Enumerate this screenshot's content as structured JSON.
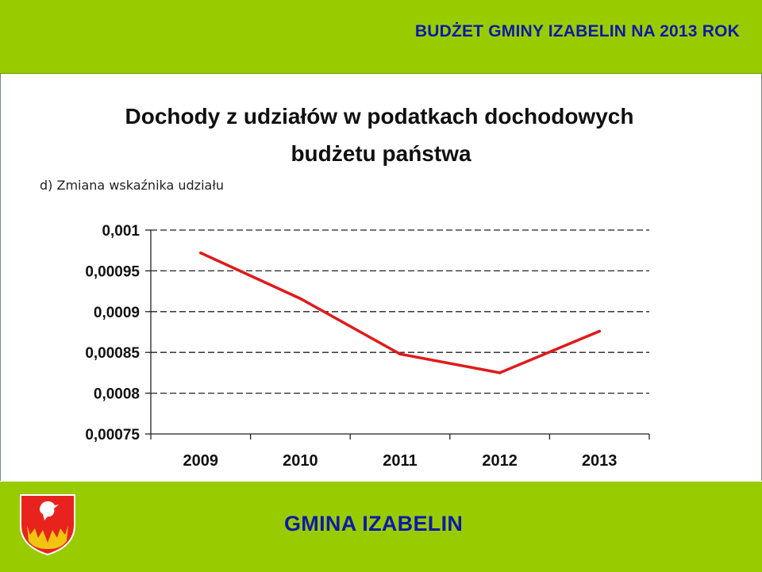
{
  "header": {
    "title": "BUDŻET GMINY IZABELIN NA 2013 ROK"
  },
  "slide": {
    "title_line1": "Dochody z udziałów w podatkach dochodowych",
    "title_line2": "budżetu państwa",
    "subtitle": "d) Zmiana wskaźnika udziału"
  },
  "footer": {
    "title": "GMINA IZABELIN"
  },
  "colors": {
    "band": "#99cc00",
    "header_text": "#0d1aa8",
    "line": "#e01a1a"
  },
  "chart_data": {
    "type": "line",
    "title": "",
    "xlabel": "",
    "ylabel": "",
    "categories": [
      "2009",
      "2010",
      "2011",
      "2012",
      "2013"
    ],
    "series": [
      {
        "values": [
          0.000972,
          0.000916,
          0.000848,
          0.000825,
          0.000876
        ]
      }
    ],
    "yticks": [
      "0,001",
      "0,00095",
      "0,0009",
      "0,00085",
      "0,0008",
      "0,00075"
    ],
    "yticks_values": [
      0.001,
      0.00095,
      0.0009,
      0.00085,
      0.0008,
      0.00075
    ],
    "ylim": [
      0.00075,
      0.001
    ],
    "grid": true,
    "legend": "none"
  }
}
